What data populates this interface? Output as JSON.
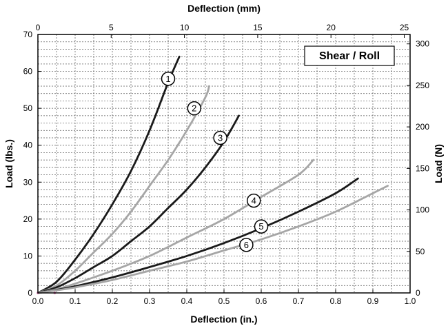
{
  "chart_data": {
    "type": "line",
    "title_box": "Shear / Roll",
    "xlabel_bottom": "Deflection (in.)",
    "xlabel_top": "Deflection (mm)",
    "ylabel_left": "Load (lbs.)",
    "ylabel_right": "Load (N)",
    "xlim": [
      0,
      1.0
    ],
    "ylim": [
      0,
      70
    ],
    "x2lim": [
      0,
      25
    ],
    "y2lim": [
      0,
      311.4
    ],
    "x_ticks": [
      "0.0",
      "0.1",
      "0.2",
      "0.3",
      "0.4",
      "0.5",
      "0.6",
      "0.7",
      "0.8",
      "0.9",
      "1.0"
    ],
    "y_ticks": [
      "0",
      "10",
      "20",
      "30",
      "40",
      "50",
      "60",
      "70"
    ],
    "x2_ticks": [
      "0",
      "5",
      "10",
      "15",
      "20",
      "25"
    ],
    "y2_ticks": [
      "0",
      "50",
      "100",
      "150",
      "200",
      "250",
      "300"
    ],
    "grid": true,
    "series": [
      {
        "label": "1",
        "color": "#1a1a1a",
        "x": [
          0,
          0.05,
          0.1,
          0.15,
          0.2,
          0.25,
          0.3,
          0.35,
          0.38
        ],
        "y": [
          0,
          3,
          9,
          16,
          24,
          33,
          44,
          57,
          64
        ],
        "marker_x": 0.35,
        "marker_y": 58
      },
      {
        "label": "2",
        "color": "#a6a6a6",
        "x": [
          0,
          0.05,
          0.1,
          0.15,
          0.2,
          0.25,
          0.3,
          0.35,
          0.4,
          0.45,
          0.46
        ],
        "y": [
          0,
          2,
          6,
          11,
          16,
          22,
          29,
          36,
          44,
          53,
          56
        ],
        "marker_x": 0.42,
        "marker_y": 50
      },
      {
        "label": "3",
        "color": "#1a1a1a",
        "x": [
          0,
          0.05,
          0.1,
          0.15,
          0.2,
          0.25,
          0.3,
          0.35,
          0.4,
          0.45,
          0.5,
          0.54
        ],
        "y": [
          0,
          1.5,
          4,
          7,
          10,
          14,
          18,
          23,
          28,
          34,
          41,
          48
        ],
        "marker_x": 0.49,
        "marker_y": 42
      },
      {
        "label": "4",
        "color": "#a6a6a6",
        "x": [
          0,
          0.05,
          0.1,
          0.2,
          0.3,
          0.4,
          0.5,
          0.6,
          0.7,
          0.74
        ],
        "y": [
          0,
          1,
          2.5,
          6,
          10,
          15,
          20,
          26,
          32,
          36
        ],
        "marker_x": 0.58,
        "marker_y": 25
      },
      {
        "label": "5",
        "color": "#1a1a1a",
        "x": [
          0,
          0.05,
          0.1,
          0.2,
          0.3,
          0.4,
          0.5,
          0.6,
          0.7,
          0.8,
          0.86
        ],
        "y": [
          0,
          0.8,
          1.8,
          4.2,
          7,
          10,
          13.5,
          17.5,
          22,
          27,
          31
        ],
        "marker_x": 0.6,
        "marker_y": 18
      },
      {
        "label": "6",
        "color": "#a6a6a6",
        "x": [
          0,
          0.05,
          0.1,
          0.2,
          0.3,
          0.4,
          0.5,
          0.6,
          0.7,
          0.8,
          0.9,
          0.94
        ],
        "y": [
          0,
          0.7,
          1.5,
          3.5,
          6,
          8.5,
          11.5,
          14.5,
          18,
          22,
          27,
          29
        ],
        "marker_x": 0.56,
        "marker_y": 13
      }
    ]
  }
}
